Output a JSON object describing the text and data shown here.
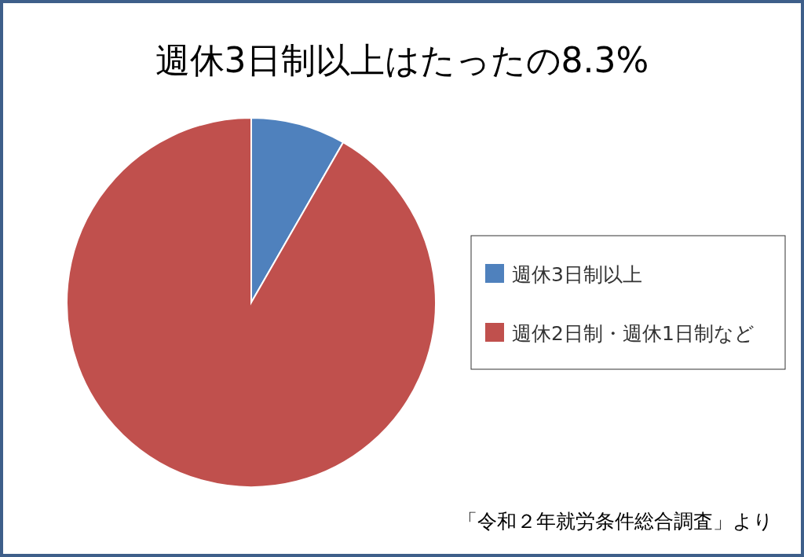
{
  "chart_data": {
    "type": "pie",
    "title": "週休3日制以上はたったの8.3%",
    "categories": [
      "週休3日制以上",
      "週休2日制・週休1日制など"
    ],
    "values": [
      8.3,
      91.7
    ],
    "colors": [
      "#4f81bd",
      "#c0504d"
    ],
    "legend": "right",
    "annotations": [
      "「令和２年就労条件総合調査」より"
    ]
  }
}
